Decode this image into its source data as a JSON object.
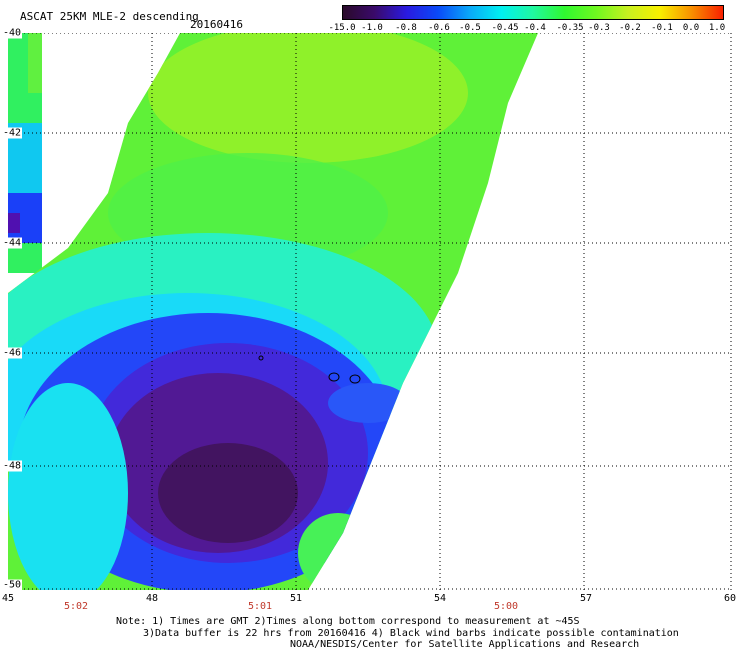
{
  "header": {
    "title": "ASCAT 25KM MLE-2 descending",
    "date": "20160416"
  },
  "colorbar": {
    "labels": [
      "-15.0",
      "-1.0",
      "-0.8",
      "-0.6",
      "-0.5",
      "-0.45",
      "-0.4",
      "-0.35",
      "-0.3",
      "-0.2",
      "-0.1",
      "0.0",
      "1.0"
    ],
    "stops": [
      "#2a0a2a",
      "#3a0a6a",
      "#2a1ae0",
      "#0a4af8",
      "#0aa8f8",
      "#00f0f0",
      "#20f8a0",
      "#30f830",
      "#70f820",
      "#c8f020",
      "#f8f000",
      "#f89000",
      "#f82000"
    ]
  },
  "axes": {
    "y_labels": [
      "-40",
      "-42",
      "-44",
      "-46",
      "-48",
      "-50"
    ],
    "x_labels": [
      "45",
      "48",
      "51",
      "54",
      "57",
      "60"
    ],
    "time_labels": [
      "5:02",
      "5:01",
      "5:00"
    ]
  },
  "colors": {
    "time_label": "#c0392b",
    "grid": "#000000",
    "background": "#ffffff"
  },
  "notes": {
    "line1": "Note: 1) Times are GMT 2)Times along bottom correspond to measurement at ~45S",
    "line2": "3)Data buffer is 22 hrs from 20160416 4) Black wind barbs indicate possible contamination",
    "line3": "NOAA/NESDIS/Center for Satellite Applications and Research"
  }
}
